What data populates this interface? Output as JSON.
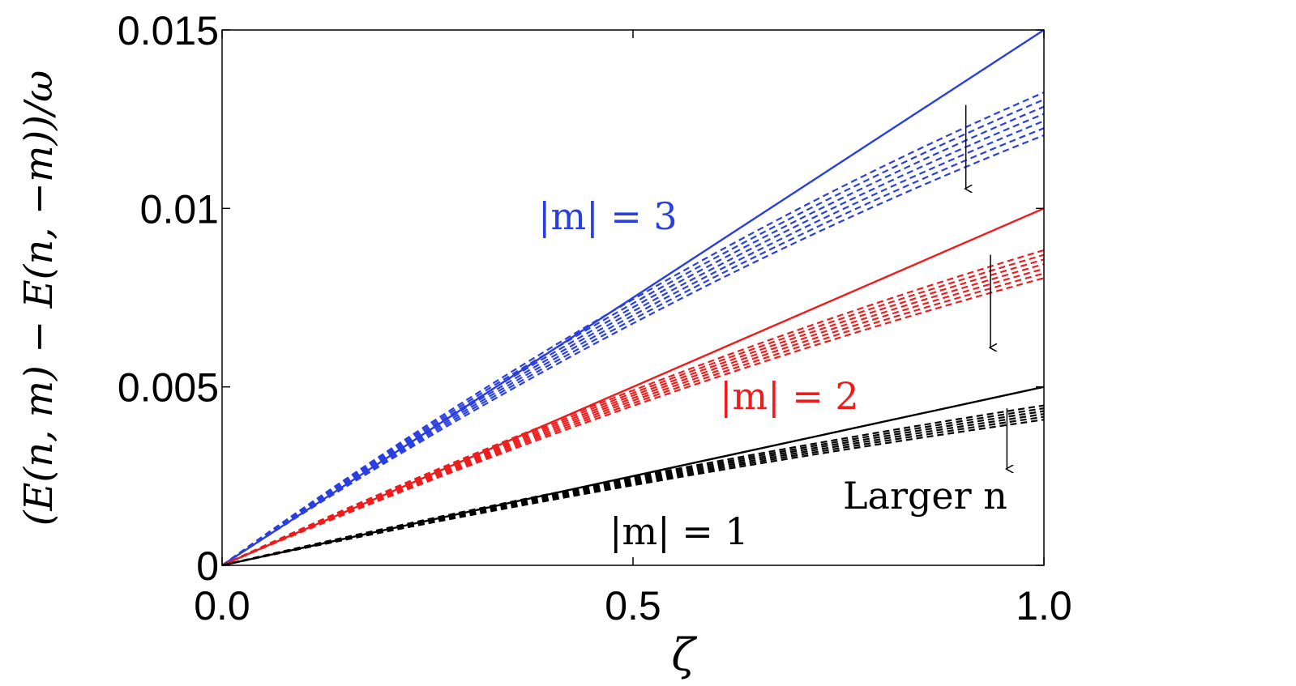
{
  "chart_data": {
    "type": "line",
    "xlabel": "ζ",
    "ylabel": "(E(n, m) − E(n, −m))/ω",
    "xlim": [
      0,
      1
    ],
    "ylim": [
      0,
      0.015
    ],
    "x_ticks": [
      {
        "value": 0,
        "label": "0.0"
      },
      {
        "value": 0.5,
        "label": "0.5"
      },
      {
        "value": 1,
        "label": "1.0"
      }
    ],
    "y_ticks": [
      {
        "value": 0,
        "label": "0"
      },
      {
        "value": 0.005,
        "label": "0.005"
      },
      {
        "value": 0.01,
        "label": "0.01"
      },
      {
        "value": 0.015,
        "label": "0.015"
      }
    ],
    "grid": false,
    "groups": [
      {
        "m": 3,
        "color": "#2a3fe0",
        "solid_end": 0.015,
        "dashed_ends": [
          0.01325,
          0.01305,
          0.01285,
          0.01265,
          0.01245,
          0.01225,
          0.01205
        ],
        "curvature": 0.25
      },
      {
        "m": 2,
        "color": "#ee1c1c",
        "solid_end": 0.01,
        "dashed_ends": [
          0.00883,
          0.0087,
          0.00857,
          0.00844,
          0.00831,
          0.00818,
          0.00805
        ],
        "curvature": 0.22
      },
      {
        "m": 1,
        "color": "#000000",
        "solid_end": 0.005,
        "dashed_ends": [
          0.00448,
          0.0044,
          0.00432,
          0.00424,
          0.00416,
          0.00408
        ],
        "curvature": 0.2
      }
    ],
    "annotations": [
      {
        "name": "m3-label",
        "text": "|m| = 3",
        "color": "#2a3fe0"
      },
      {
        "name": "m2-label",
        "text": "|m| = 2",
        "color": "#ee1c1c"
      },
      {
        "name": "m1-label",
        "text": "|m| = 1",
        "color": "#000000"
      },
      {
        "name": "larger-n-label",
        "text": "Larger n",
        "color": "#000000"
      }
    ],
    "arrows": [
      {
        "x": 0.905,
        "y_from": 0.0129,
        "y_to": 0.01055
      },
      {
        "x": 0.935,
        "y_from": 0.0087,
        "y_to": 0.0061
      },
      {
        "x": 0.955,
        "y_from": 0.0044,
        "y_to": 0.0027
      }
    ]
  }
}
